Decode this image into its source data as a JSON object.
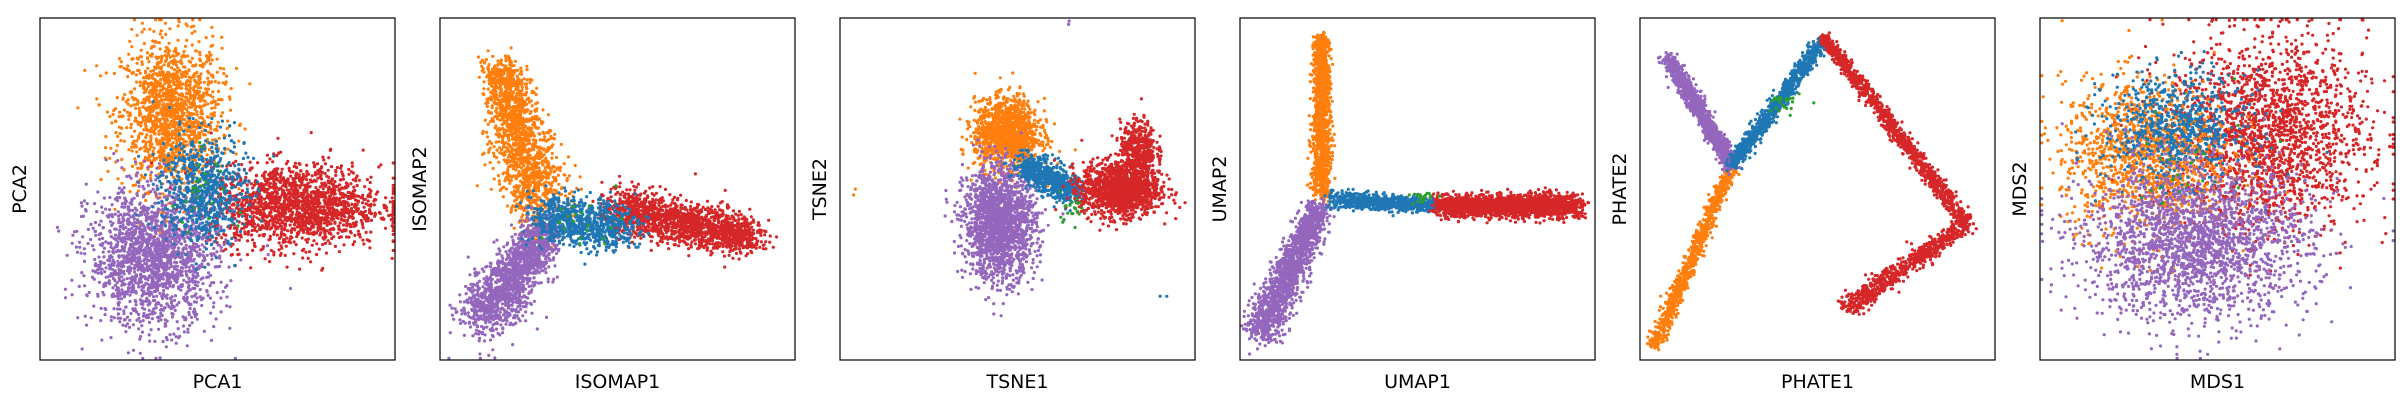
{
  "colors": {
    "blue": "#1f77b4",
    "orange": "#ff7f0e",
    "green": "#2ca02c",
    "red": "#d62728",
    "purple": "#9467bd",
    "frame": "#000000"
  },
  "chart_data": [
    {
      "type": "scatter",
      "xlabel": "PCA1",
      "ylabel": "PCA2",
      "grid": false,
      "xticks": "none",
      "yticks": "none",
      "xlim": [
        0,
        100
      ],
      "ylim": [
        0,
        100
      ],
      "clusters": [
        {
          "color": "orange",
          "n": 1500,
          "shape": "blob",
          "cx": 37,
          "cy": 72,
          "sx": 7,
          "sy": 11
        },
        {
          "color": "red",
          "n": 1700,
          "shape": "blob",
          "cx": 72,
          "cy": 45,
          "sx": 12,
          "sy": 6
        },
        {
          "color": "purple",
          "n": 1800,
          "shape": "blob",
          "cx": 32,
          "cy": 30,
          "sx": 9,
          "sy": 10
        },
        {
          "color": "blue",
          "n": 700,
          "shape": "blob",
          "cx": 46,
          "cy": 50,
          "sx": 6,
          "sy": 8
        },
        {
          "color": "green",
          "n": 25,
          "shape": "blob",
          "cx": 46,
          "cy": 50,
          "sx": 5,
          "sy": 6
        }
      ]
    },
    {
      "type": "scatter",
      "xlabel": "ISOMAP1",
      "ylabel": "ISOMAP2",
      "grid": false,
      "xticks": "none",
      "yticks": "none",
      "xlim": [
        0,
        100
      ],
      "ylim": [
        0,
        100
      ],
      "clusters": [
        {
          "color": "orange",
          "n": 1500,
          "shape": "line",
          "x1": 17,
          "y1": 85,
          "x2": 28,
          "y2": 45,
          "w": 4,
          "w2": 7
        },
        {
          "color": "purple",
          "n": 1500,
          "shape": "line",
          "x1": 12,
          "y1": 12,
          "x2": 30,
          "y2": 38,
          "w": 6,
          "w2": 4
        },
        {
          "color": "red",
          "n": 1600,
          "shape": "line",
          "x1": 50,
          "y1": 44,
          "x2": 88,
          "y2": 36,
          "w": 5,
          "w2": 4
        },
        {
          "color": "blue",
          "n": 800,
          "shape": "line",
          "x1": 28,
          "y1": 42,
          "x2": 52,
          "y2": 38,
          "w": 5,
          "w2": 5
        },
        {
          "color": "green",
          "n": 20,
          "shape": "blob",
          "cx": 40,
          "cy": 40,
          "sx": 6,
          "sy": 4
        }
      ]
    },
    {
      "type": "scatter",
      "xlabel": "TSNE1",
      "ylabel": "TSNE2",
      "grid": false,
      "xticks": "none",
      "yticks": "none",
      "xlim": [
        0,
        100
      ],
      "ylim": [
        0,
        100
      ],
      "clusters": [
        {
          "color": "orange",
          "n": 1400,
          "shape": "blob",
          "cx": 47,
          "cy": 66,
          "sx": 4.5,
          "sy": 5
        },
        {
          "color": "purple",
          "n": 1800,
          "shape": "blob",
          "cx": 45,
          "cy": 40,
          "sx": 5,
          "sy": 8
        },
        {
          "color": "blue",
          "n": 700,
          "shape": "line",
          "x1": 52,
          "y1": 57,
          "x2": 66,
          "y2": 49,
          "w": 3,
          "w2": 3
        },
        {
          "color": "red",
          "n": 1400,
          "shape": "blob",
          "cx": 79,
          "cy": 50,
          "sx": 5.5,
          "sy": 4
        },
        {
          "color": "red",
          "n": 400,
          "shape": "blob",
          "cx": 84,
          "cy": 62,
          "sx": 2.5,
          "sy": 4
        },
        {
          "color": "green",
          "n": 20,
          "shape": "blob",
          "cx": 65,
          "cy": 45,
          "sx": 2,
          "sy": 2
        },
        {
          "color": "orange",
          "n": 2,
          "shape": "blob",
          "cx": 4,
          "cy": 50,
          "sx": 1,
          "sy": 1
        },
        {
          "color": "blue",
          "n": 2,
          "shape": "blob",
          "cx": 92,
          "cy": 18,
          "sx": 1,
          "sy": 1
        },
        {
          "color": "purple",
          "n": 2,
          "shape": "blob",
          "cx": 65,
          "cy": 98,
          "sx": 1,
          "sy": 1
        }
      ]
    },
    {
      "type": "scatter",
      "xlabel": "UMAP1",
      "ylabel": "UMAP2",
      "grid": false,
      "xticks": "none",
      "yticks": "none",
      "xlim": [
        0,
        100
      ],
      "ylim": [
        0,
        100
      ],
      "clusters": [
        {
          "color": "orange",
          "n": 1300,
          "shape": "line",
          "x1": 23,
          "y1": 94,
          "x2": 23,
          "y2": 48,
          "w": 1.5,
          "w2": 2
        },
        {
          "color": "purple",
          "n": 1500,
          "shape": "line",
          "x1": 22,
          "y1": 44,
          "x2": 6,
          "y2": 8,
          "w": 2.5,
          "w2": 4
        },
        {
          "color": "blue",
          "n": 800,
          "shape": "line",
          "x1": 26,
          "y1": 47,
          "x2": 56,
          "y2": 45,
          "w": 1.8,
          "w2": 1.4
        },
        {
          "color": "red",
          "n": 1800,
          "shape": "line",
          "x1": 56,
          "y1": 45,
          "x2": 95,
          "y2": 45,
          "w": 2.4,
          "w2": 2.4
        },
        {
          "color": "green",
          "n": 20,
          "shape": "blob",
          "cx": 52,
          "cy": 48,
          "sx": 2,
          "sy": 1
        }
      ]
    },
    {
      "type": "scatter",
      "xlabel": "PHATE1",
      "ylabel": "PHATE2",
      "grid": false,
      "xticks": "none",
      "yticks": "none",
      "xlim": [
        0,
        100
      ],
      "ylim": [
        0,
        100
      ],
      "clusters": [
        {
          "color": "orange",
          "n": 900,
          "shape": "line",
          "x1": 4,
          "y1": 4,
          "x2": 26,
          "y2": 57,
          "w": 1.5,
          "w2": 1.2
        },
        {
          "color": "purple",
          "n": 1100,
          "shape": "line",
          "x1": 8,
          "y1": 88,
          "x2": 26,
          "y2": 57,
          "w": 1.6,
          "w2": 1.6
        },
        {
          "color": "blue",
          "n": 900,
          "shape": "line",
          "x1": 26,
          "y1": 57,
          "x2": 52,
          "y2": 94,
          "w": 1.5,
          "w2": 1.5
        },
        {
          "color": "red",
          "n": 1100,
          "shape": "line",
          "x1": 52,
          "y1": 94,
          "x2": 92,
          "y2": 40,
          "w": 1.3,
          "w2": 1.6
        },
        {
          "color": "red",
          "n": 700,
          "shape": "line",
          "x1": 92,
          "y1": 40,
          "x2": 58,
          "y2": 15,
          "w": 1.8,
          "w2": 2.2
        },
        {
          "color": "green",
          "n": 25,
          "shape": "blob",
          "cx": 40,
          "cy": 75,
          "sx": 2.5,
          "sy": 2
        }
      ]
    },
    {
      "type": "scatter",
      "xlabel": "MDS1",
      "ylabel": "MDS2",
      "grid": false,
      "xticks": "none",
      "yticks": "none",
      "xlim": [
        0,
        100
      ],
      "ylim": [
        0,
        100
      ],
      "clusters": [
        {
          "color": "red",
          "n": 2000,
          "shape": "blob",
          "cx": 64,
          "cy": 66,
          "sx": 14,
          "sy": 14
        },
        {
          "color": "orange",
          "n": 1300,
          "shape": "blob",
          "cx": 30,
          "cy": 60,
          "sx": 12,
          "sy": 11
        },
        {
          "color": "blue",
          "n": 700,
          "shape": "blob",
          "cx": 38,
          "cy": 68,
          "sx": 10,
          "sy": 8
        },
        {
          "color": "purple",
          "n": 2100,
          "shape": "blob",
          "cx": 44,
          "cy": 34,
          "sx": 16,
          "sy": 11
        },
        {
          "color": "green",
          "n": 20,
          "shape": "blob",
          "cx": 40,
          "cy": 55,
          "sx": 10,
          "sy": 10
        }
      ]
    }
  ]
}
